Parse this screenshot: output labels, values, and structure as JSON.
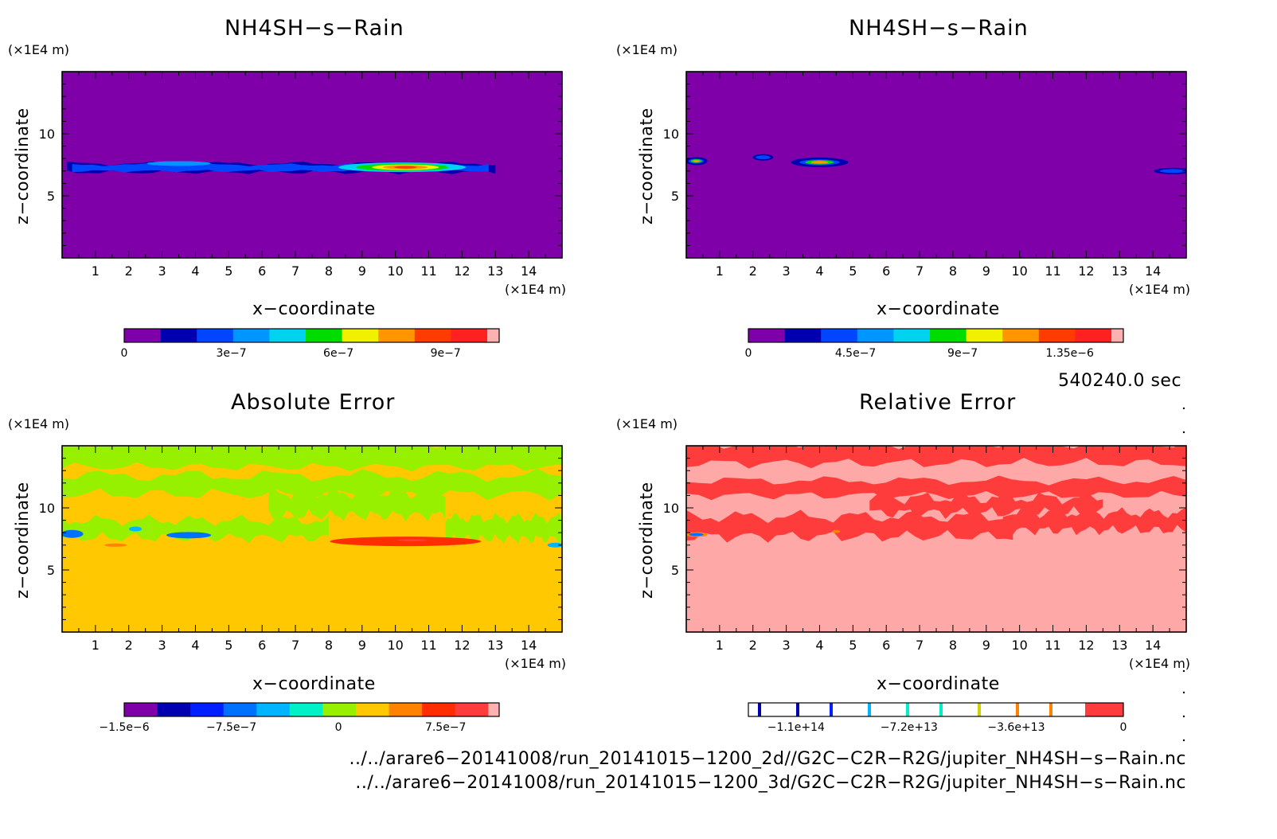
{
  "panels": [
    {
      "id": "p1",
      "title": "NH4SH−s−Rain",
      "y_unit": "(×1E4 m)",
      "x_unit": "(×1E4 m)",
      "xlabel": "x−coordinate",
      "ylabel": "z−coordinate",
      "colorbar_ticks": [
        "0",
        "3e−7",
        "6e−7",
        "9e−7"
      ]
    },
    {
      "id": "p2",
      "title": "NH4SH−s−Rain",
      "y_unit": "(×1E4 m)",
      "x_unit": "(×1E4 m)",
      "xlabel": "x−coordinate",
      "ylabel": "z−coordinate",
      "colorbar_ticks": [
        "0",
        "4.5e−7",
        "9e−7",
        "1.35e−6"
      ]
    },
    {
      "id": "p3",
      "title": "Absolute Error",
      "y_unit": "(×1E4 m)",
      "x_unit": "(×1E4 m)",
      "xlabel": "x−coordinate",
      "ylabel": "z−coordinate",
      "colorbar_ticks": [
        "−1.5e−6",
        "−7.5e−7",
        "0",
        "7.5e−7"
      ]
    },
    {
      "id": "p4",
      "title": "Relative Error",
      "y_unit": "(×1E4 m)",
      "x_unit": "(×1E4 m)",
      "xlabel": "x−coordinate",
      "ylabel": "z−coordinate",
      "colorbar_ticks": [
        "−1.1e+14",
        "−7.2e+13",
        "−3.6e+13",
        "0"
      ]
    }
  ],
  "time_label": "540240.0 sec",
  "footer": {
    "file_2d": "../../arare6−20141008/run_20141015−1200_2d//G2C−C2R−R2G/jupiter_NH4SH−s−Rain.nc",
    "file_3d": "../../arare6−20141008/run_20141015−1200_3d/G2C−C2R−R2G/jupiter_NH4SH−s−Rain.nc"
  },
  "chart_data": [
    {
      "type": "heatmap",
      "title": "NH4SH−s−Rain",
      "xlabel": "x−coordinate",
      "ylabel": "z−coordinate",
      "xlim": [
        0,
        15
      ],
      "ylim": [
        0,
        15
      ],
      "x_ticks": [
        1,
        2,
        3,
        4,
        5,
        6,
        7,
        8,
        9,
        10,
        11,
        12,
        13,
        14
      ],
      "y_ticks": [
        5,
        10
      ],
      "background_level": 0,
      "colorbar": {
        "range": [
          0,
          1.05e-06
        ],
        "tick_values": [
          0,
          3e-07,
          6e-07,
          9e-07
        ],
        "colors": [
          "#7f00a8",
          "#0000b0",
          "#0046ff",
          "#0096ff",
          "#00d2f0",
          "#00dc00",
          "#f0f000",
          "#ff9600",
          "#ff3c00",
          "#ff2020",
          "#ffb0b0"
        ]
      },
      "features": [
        {
          "kind": "band",
          "x_range": [
            0.1,
            13.1
          ],
          "z_center": 7.2,
          "level": 1,
          "note_color": "#0046ff"
        },
        {
          "kind": "core",
          "x_center": 10.3,
          "z_center": 7.3,
          "peak_value": 1.05e-06
        }
      ]
    },
    {
      "type": "heatmap",
      "title": "NH4SH−s−Rain",
      "xlabel": "x−coordinate",
      "ylabel": "z−coordinate",
      "xlim": [
        0,
        15
      ],
      "ylim": [
        0,
        15
      ],
      "x_ticks": [
        1,
        2,
        3,
        4,
        5,
        6,
        7,
        8,
        9,
        10,
        11,
        12,
        13,
        14
      ],
      "y_ticks": [
        5,
        10
      ],
      "background_level": 0,
      "colorbar": {
        "range": [
          0,
          1.575e-06
        ],
        "tick_values": [
          0,
          4.5e-07,
          9e-07,
          1.35e-06
        ],
        "colors": [
          "#7f00a8",
          "#0000b0",
          "#0046ff",
          "#0096ff",
          "#00d2f0",
          "#00dc00",
          "#f0f000",
          "#ff9600",
          "#ff3c00",
          "#ff2020",
          "#ffb0b0"
        ]
      },
      "features": [
        {
          "kind": "blob",
          "x_center": 0.3,
          "z_center": 7.8
        },
        {
          "kind": "blob",
          "x_center": 2.3,
          "z_center": 8.1
        },
        {
          "kind": "blob",
          "x_center": 4.0,
          "z_center": 7.7
        },
        {
          "kind": "blob",
          "x_center": 14.6,
          "z_center": 7.0
        }
      ]
    },
    {
      "type": "heatmap",
      "title": "Absolute Error",
      "xlabel": "x−coordinate",
      "ylabel": "z−coordinate",
      "xlim": [
        0,
        15
      ],
      "ylim": [
        0,
        15
      ],
      "x_ticks": [
        1,
        2,
        3,
        4,
        5,
        6,
        7,
        8,
        9,
        10,
        11,
        12,
        13,
        14
      ],
      "y_ticks": [
        5,
        10
      ],
      "colorbar": {
        "range": [
          -1.5e-06,
          1.125e-06
        ],
        "tick_values": [
          -1.5e-06,
          -7.5e-07,
          0,
          7.5e-07
        ],
        "colors": [
          "#7f00a8",
          "#0000b0",
          "#0020ff",
          "#0070ff",
          "#00b4ff",
          "#00f0c8",
          "#96f000",
          "#ffc800",
          "#ff8200",
          "#ff2d00",
          "#ff3c3c",
          "#ffb0b0"
        ]
      },
      "features": [
        {
          "kind": "region",
          "z_range": [
            0,
            7.5
          ],
          "value_color": "#ffc800"
        },
        {
          "kind": "region",
          "z_range": [
            7.5,
            15
          ],
          "value_color": "#96f000"
        },
        {
          "kind": "core",
          "x_center": 10.2,
          "z_center": 7.3,
          "value_color": "#ff2d00"
        },
        {
          "kind": "blob",
          "x_center": 0.3,
          "z_center": 7.9,
          "value_color": "#0070ff"
        },
        {
          "kind": "blob",
          "x_center": 3.8,
          "z_center": 7.8,
          "value_color": "#0070ff"
        }
      ]
    },
    {
      "type": "heatmap",
      "title": "Relative Error",
      "xlabel": "x−coordinate",
      "ylabel": "z−coordinate",
      "xlim": [
        0,
        15
      ],
      "ylim": [
        0,
        15
      ],
      "x_ticks": [
        1,
        2,
        3,
        4,
        5,
        6,
        7,
        8,
        9,
        10,
        11,
        12,
        13,
        14
      ],
      "y_ticks": [
        5,
        10
      ],
      "colorbar": {
        "range": [
          -126000000000000.0,
          0
        ],
        "tick_values": [
          -110000000000000.0,
          -72000000000000.0,
          -36000000000000.0,
          0
        ],
        "colors": [
          "#0000b0",
          "#0000b0",
          "#0020ff",
          "#0070ff",
          "#00f0c8",
          "#00f0c8",
          "#96f000",
          "#ff8200",
          "#ff8200",
          "#ff3c3c"
        ]
      },
      "features": [
        {
          "kind": "region",
          "z_range": [
            0,
            7.5
          ],
          "value_color": "#ffa8a8"
        },
        {
          "kind": "region",
          "z_range": [
            7.5,
            15
          ],
          "value_color": "#ff3c3c"
        }
      ]
    }
  ]
}
